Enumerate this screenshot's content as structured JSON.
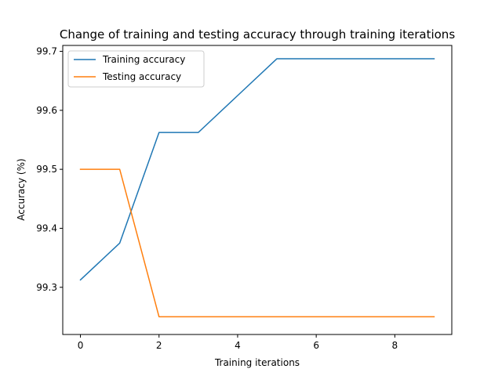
{
  "chart_data": {
    "type": "line",
    "title": "Change of training and testing accuracy through training iterations",
    "xlabel": "Training iterations",
    "ylabel": "Accuracy (%)",
    "xlim": [
      -0.45,
      9.45
    ],
    "ylim": [
      99.22,
      99.71
    ],
    "x_ticks": [
      0,
      2,
      4,
      6,
      8
    ],
    "y_ticks": [
      99.3,
      99.4,
      99.5,
      99.6,
      99.7
    ],
    "grid": false,
    "legend_position": "upper-left",
    "x": [
      0,
      1,
      2,
      3,
      4,
      5,
      6,
      7,
      8,
      9
    ],
    "series": [
      {
        "name": "Training accuracy",
        "color": "#1f77b4",
        "values": [
          99.3125,
          99.375,
          99.5625,
          99.5625,
          99.625,
          99.6875,
          99.6875,
          99.6875,
          99.6875,
          99.6875
        ]
      },
      {
        "name": "Testing accuracy",
        "color": "#ff7f0e",
        "values": [
          99.5,
          99.5,
          99.25,
          99.25,
          99.25,
          99.25,
          99.25,
          99.25,
          99.25,
          99.25
        ]
      }
    ]
  }
}
